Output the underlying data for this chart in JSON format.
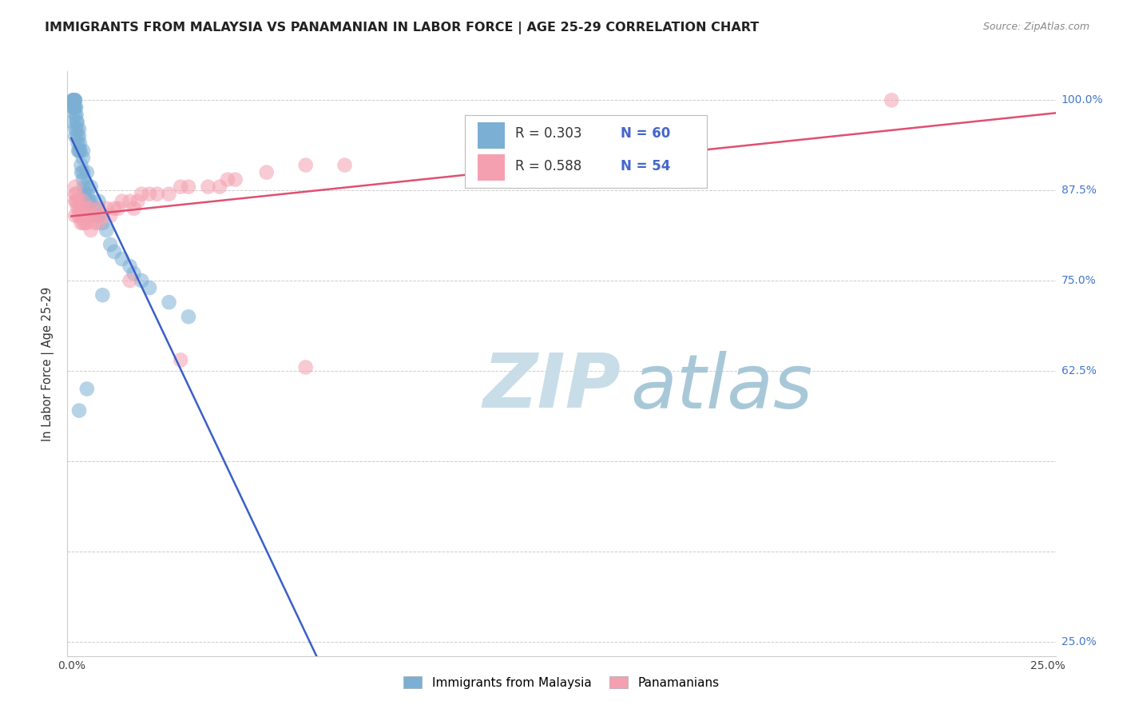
{
  "title": "IMMIGRANTS FROM MALAYSIA VS PANAMANIAN IN LABOR FORCE | AGE 25-29 CORRELATION CHART",
  "source": "Source: ZipAtlas.com",
  "ylabel": "In Labor Force | Age 25-29",
  "xlim": [
    -0.001,
    0.252
  ],
  "ylim": [
    0.23,
    1.04
  ],
  "x_ticks": [
    0.0,
    0.05,
    0.1,
    0.15,
    0.2,
    0.25
  ],
  "x_tick_labels": [
    "0.0%",
    "",
    "",
    "",
    "",
    "25.0%"
  ],
  "y_ticks": [
    0.25,
    0.375,
    0.5,
    0.625,
    0.75,
    0.875,
    1.0
  ],
  "y_labels_right": [
    "25.0%",
    "",
    "",
    "62.5%",
    "75.0%",
    "87.5%",
    "100.0%"
  ],
  "malaysia_color": "#7bafd4",
  "panama_color": "#f4a0b0",
  "malaysia_label": "Immigrants from Malaysia",
  "panama_label": "Panamanians",
  "malaysia_R": 0.303,
  "malaysia_N": 60,
  "panama_R": 0.588,
  "panama_N": 54,
  "trend_blue": "#3a5fc8",
  "trend_pink": "#e05070",
  "legend_R_N_color": "#4466cc",
  "background_color": "#ffffff",
  "grid_color": "#cccccc",
  "watermark_zip": "ZIP",
  "watermark_atlas": "atlas",
  "watermark_color_zip": "#c8dde8",
  "watermark_color_atlas": "#c8dde8",
  "malaysia_x": [
    0.0002,
    0.0003,
    0.0004,
    0.0005,
    0.0006,
    0.0006,
    0.0007,
    0.0008,
    0.0008,
    0.0009,
    0.001,
    0.001,
    0.001,
    0.001,
    0.001,
    0.0012,
    0.0013,
    0.0014,
    0.0015,
    0.0015,
    0.0016,
    0.0017,
    0.0018,
    0.002,
    0.002,
    0.002,
    0.0022,
    0.0023,
    0.0025,
    0.0026,
    0.003,
    0.003,
    0.003,
    0.003,
    0.0032,
    0.0035,
    0.004,
    0.004,
    0.0042,
    0.0045,
    0.005,
    0.005,
    0.006,
    0.006,
    0.007,
    0.007,
    0.008,
    0.009,
    0.01,
    0.011,
    0.013,
    0.015,
    0.016,
    0.018,
    0.02,
    0.025,
    0.03,
    0.008,
    0.004,
    0.002
  ],
  "malaysia_y": [
    0.97,
    0.99,
    1.0,
    1.0,
    1.0,
    0.99,
    1.0,
    0.99,
    1.0,
    1.0,
    0.98,
    0.99,
    1.0,
    0.96,
    0.95,
    0.99,
    0.98,
    0.97,
    0.97,
    0.96,
    0.95,
    0.94,
    0.93,
    0.96,
    0.95,
    0.93,
    0.94,
    0.93,
    0.91,
    0.9,
    0.93,
    0.92,
    0.9,
    0.89,
    0.88,
    0.87,
    0.9,
    0.88,
    0.87,
    0.86,
    0.88,
    0.86,
    0.85,
    0.84,
    0.86,
    0.84,
    0.83,
    0.82,
    0.8,
    0.79,
    0.78,
    0.77,
    0.76,
    0.75,
    0.74,
    0.72,
    0.7,
    0.73,
    0.6,
    0.57
  ],
  "panama_x": [
    0.001,
    0.001,
    0.001,
    0.001,
    0.0012,
    0.0013,
    0.0015,
    0.0016,
    0.0018,
    0.002,
    0.002,
    0.0022,
    0.0025,
    0.003,
    0.003,
    0.003,
    0.0032,
    0.0035,
    0.004,
    0.004,
    0.004,
    0.005,
    0.005,
    0.005,
    0.006,
    0.006,
    0.007,
    0.007,
    0.008,
    0.009,
    0.01,
    0.011,
    0.012,
    0.013,
    0.015,
    0.016,
    0.017,
    0.018,
    0.02,
    0.022,
    0.025,
    0.028,
    0.03,
    0.035,
    0.038,
    0.04,
    0.042,
    0.05,
    0.06,
    0.07,
    0.015,
    0.028,
    0.06,
    0.21
  ],
  "panama_y": [
    0.88,
    0.87,
    0.86,
    0.84,
    0.87,
    0.86,
    0.86,
    0.85,
    0.84,
    0.86,
    0.85,
    0.84,
    0.83,
    0.86,
    0.85,
    0.83,
    0.84,
    0.83,
    0.85,
    0.84,
    0.83,
    0.85,
    0.84,
    0.82,
    0.84,
    0.83,
    0.85,
    0.83,
    0.84,
    0.85,
    0.84,
    0.85,
    0.85,
    0.86,
    0.86,
    0.85,
    0.86,
    0.87,
    0.87,
    0.87,
    0.87,
    0.88,
    0.88,
    0.88,
    0.88,
    0.89,
    0.89,
    0.9,
    0.91,
    0.91,
    0.75,
    0.64,
    0.63,
    1.0
  ]
}
